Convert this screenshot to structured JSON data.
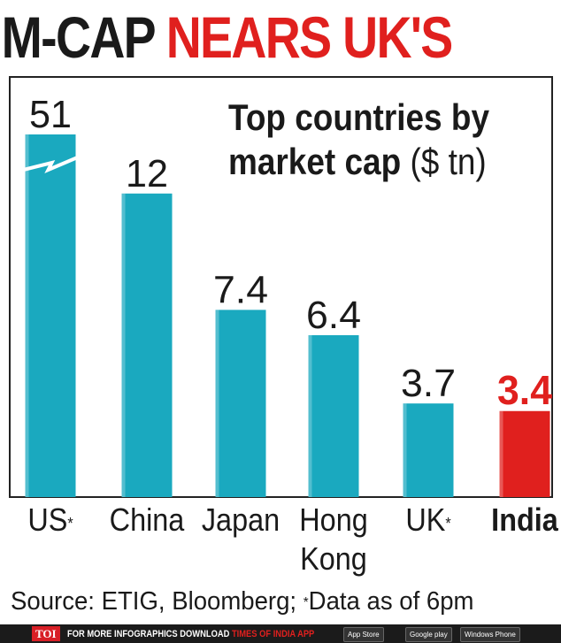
{
  "headline": {
    "part1": "M-CAP ",
    "part2": "NEARS UK'S"
  },
  "subtitle": {
    "line1": "Top countries by",
    "line2_bold": "market cap ",
    "line2_light": "($ tn)"
  },
  "colors": {
    "bar": "#1aa9bf",
    "bar_highlight": "#e0201e",
    "text": "#1a1a1a",
    "headline_red": "#e0201e"
  },
  "chart_data": {
    "type": "bar",
    "categories": [
      "US",
      "China",
      "Japan",
      "Hong Kong",
      "UK",
      "India"
    ],
    "category_labels": [
      {
        "text": "US",
        "sup": "*"
      },
      {
        "text": "China",
        "sup": ""
      },
      {
        "text": "Japan",
        "sup": ""
      },
      {
        "text": "Hong",
        "text2": "Kong",
        "sup": ""
      },
      {
        "text": "UK",
        "sup": "*"
      },
      {
        "text": "India",
        "sup": ""
      }
    ],
    "values": [
      51,
      12,
      7.4,
      6.4,
      3.7,
      3.4
    ],
    "value_labels": [
      "51",
      "12",
      "7.4",
      "6.4",
      "3.7",
      "3.4"
    ],
    "highlight_index": 5,
    "axis_break": "US",
    "title": "Top countries by market cap ($ tn)"
  },
  "source": {
    "prefix": "Source: ETIG, Bloomberg; ",
    "sup": "*",
    "suffix": "Data as of 6pm"
  },
  "footer": {
    "badge": "TOI",
    "text": "FOR MORE INFOGRAPHICS DOWNLOAD ",
    "app": "TIMES OF INDIA APP",
    "stores": [
      "App Store",
      "Google play",
      "Windows Phone"
    ]
  }
}
